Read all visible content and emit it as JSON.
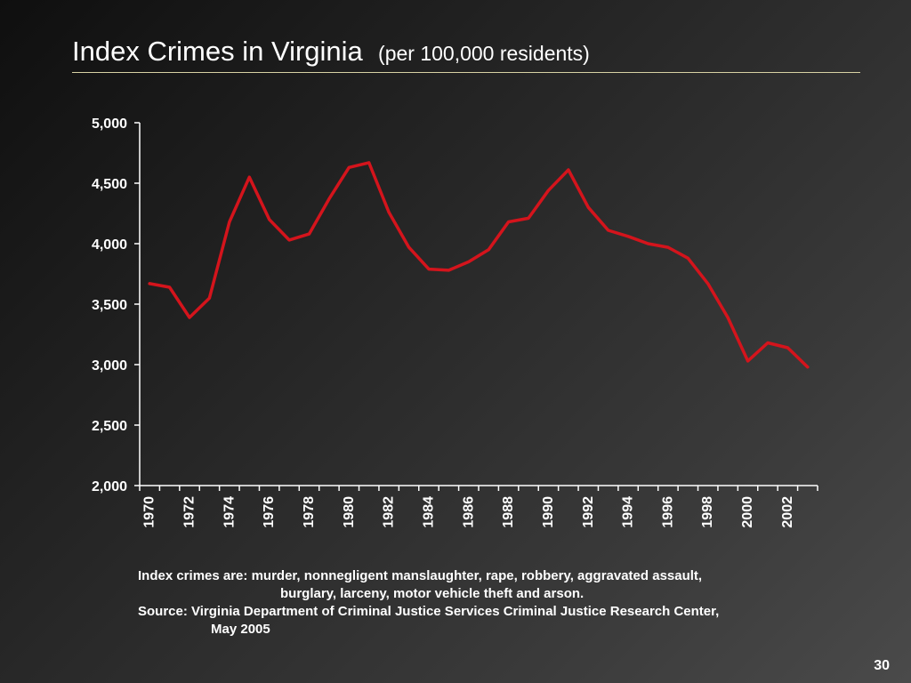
{
  "slide": {
    "title": "Index Crimes in Virginia",
    "subtitle": "(per 100,000 residents)",
    "notes": [
      "Index crimes are:  murder, nonnegligent manslaughter, rape, robbery, aggravated assault,",
      "burglary, larceny, motor vehicle theft and arson.",
      "Source:  Virginia Department of Criminal Justice Services Criminal Justice Research Center,",
      "May 2005"
    ],
    "page_number": "30"
  },
  "colors": {
    "line": "#d4141c",
    "axis": "#ffffff",
    "rule": "#d8d2a4"
  },
  "chart_data": {
    "type": "line",
    "title": "",
    "xlabel": "",
    "ylabel": "",
    "x": [
      1970,
      1971,
      1972,
      1973,
      1974,
      1975,
      1976,
      1977,
      1978,
      1979,
      1980,
      1981,
      1982,
      1983,
      1984,
      1985,
      1986,
      1987,
      1988,
      1989,
      1990,
      1991,
      1992,
      1993,
      1994,
      1995,
      1996,
      1997,
      1998,
      1999,
      2000,
      2001,
      2002,
      2003
    ],
    "x_tick_labels": [
      "1970",
      "1972",
      "1974",
      "1976",
      "1978",
      "1980",
      "1982",
      "1984",
      "1986",
      "1988",
      "1990",
      "1992",
      "1994",
      "1996",
      "1998",
      "2000",
      "2002"
    ],
    "series": [
      {
        "values": [
          3670,
          3640,
          3390,
          3550,
          4180,
          4550,
          4200,
          4030,
          4080,
          4370,
          4630,
          4670,
          4260,
          3970,
          3790,
          3780,
          3850,
          3950,
          4180,
          4210,
          4440,
          4610,
          4300,
          4110,
          4060,
          4000,
          3970,
          3880,
          3670,
          3390,
          3030,
          3180,
          3140,
          2980
        ]
      }
    ],
    "ylim": [
      2000,
      5000
    ],
    "y_ticks": [
      2000,
      2500,
      3000,
      3500,
      4000,
      4500,
      5000
    ],
    "y_tick_labels": [
      "2,000",
      "2,500",
      "3,000",
      "3,500",
      "4,000",
      "4,500",
      "5,000"
    ],
    "grid": false,
    "legend": "none"
  }
}
